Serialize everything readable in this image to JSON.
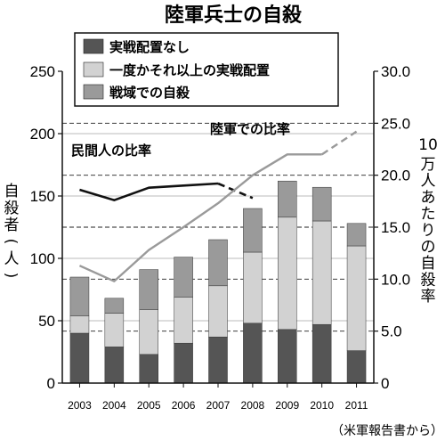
{
  "chart_data": {
    "type": "bar",
    "title": "陸軍兵士の自殺",
    "source": "（米軍報告書から）",
    "categories": [
      "2003",
      "2004",
      "2005",
      "2006",
      "2007",
      "2008",
      "2009",
      "2010",
      "2011"
    ],
    "series": [
      {
        "name": "実戦配置なし",
        "values": [
          40,
          29,
          23,
          32,
          37,
          48,
          43,
          47,
          26
        ],
        "color": "#555555"
      },
      {
        "name": "一度かそれ以上の実戦配置",
        "values": [
          14,
          27,
          36,
          37,
          41,
          57,
          90,
          83,
          84
        ],
        "color": "#d2d2d2"
      },
      {
        "name": "戦域での自殺",
        "values": [
          31,
          12,
          32,
          32,
          37,
          35,
          29,
          27,
          18
        ],
        "color": "#9a9a9a"
      }
    ],
    "lines": [
      {
        "name": "民間人の比率",
        "x": [
          "2003",
          "2004",
          "2005",
          "2006",
          "2007",
          "2008"
        ],
        "values": [
          18.6,
          17.6,
          18.8,
          19.0,
          19.2,
          17.8
        ],
        "dashed_from_index": 4,
        "color": "#111111"
      },
      {
        "name": "陸軍での比率",
        "x": [
          "2003",
          "2004",
          "2005",
          "2006",
          "2007",
          "2008",
          "2009",
          "2010",
          "2011"
        ],
        "values": [
          11.3,
          9.8,
          12.8,
          15.0,
          17.3,
          20.0,
          22.0,
          22.0,
          24.2
        ],
        "dashed_from_index": 7,
        "color": "#9a9a9a"
      }
    ],
    "ylabel": "自殺者（人）",
    "ylim": [
      0,
      250
    ],
    "yticks": [
      "0",
      "50",
      "100",
      "150",
      "200",
      "250"
    ],
    "y2label": "10万人あたりの自殺率",
    "y2lim": [
      0,
      30
    ],
    "y2ticks": [
      "0",
      "5.0",
      "10.0",
      "15.0",
      "20.0",
      "25.0",
      "30.0"
    ],
    "y2_dashed_gridlines": [
      5,
      10,
      15,
      20,
      25
    ],
    "legend_position": "top-left"
  }
}
